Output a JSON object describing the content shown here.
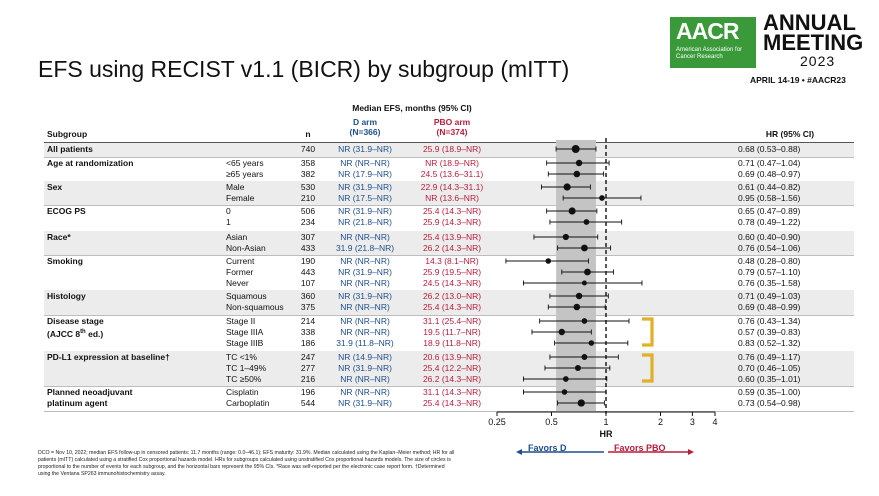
{
  "slide": {
    "title": "EFS using RECIST v1.1 (BICR) by subgroup (mITT)"
  },
  "logo": {
    "mark": "AACR",
    "org": "American Association for Cancer Research",
    "event": "ANNUAL MEETING",
    "year": "2023",
    "dates": "APRIL 14-19 • #AACR23"
  },
  "headers": {
    "median": "Median EFS, months (95% CI)",
    "subgroup": "Subgroup",
    "n": "n",
    "d_arm": "D arm",
    "d_n": "(N=366)",
    "pbo_arm": "PBO arm",
    "pbo_n": "(N=374)",
    "hr_ci": "HR (95% CI)"
  },
  "chart_data": {
    "type": "forest",
    "xlabel": "HR",
    "x_scale": "log",
    "xlim": [
      0.25,
      4
    ],
    "x_ticks": [
      "0.25",
      "0.5",
      "1",
      "2",
      "3",
      "4"
    ],
    "x_tick_values": [
      0.25,
      0.5,
      1,
      2,
      3,
      4
    ],
    "reference_line": 1,
    "shaded_ci": [
      0.53,
      0.88
    ],
    "favors_left": "Favors D",
    "favors_right": "Favors PBO",
    "rows": [
      {
        "group": "All patients",
        "level": "",
        "n": "740",
        "d": "NR (31.9–NR)",
        "pbo": "25.9 (18.9–NR)",
        "hr_text": "0.68 (0.53–0.88)",
        "hr": 0.68,
        "lo": 0.53,
        "hi": 0.88
      },
      {
        "group": "Age at randomization",
        "level": "<65 years",
        "n": "358",
        "d": "NR (NR–NR)",
        "pbo": "NR (18.9–NR)",
        "hr_text": "0.71 (0.47–1.04)",
        "hr": 0.71,
        "lo": 0.47,
        "hi": 1.04
      },
      {
        "group": "",
        "level": "≥65 years",
        "n": "382",
        "d": "NR (17.9–NR)",
        "pbo": "24.5 (13.6–31.1)",
        "hr_text": "0.69 (0.48–0.97)",
        "hr": 0.69,
        "lo": 0.48,
        "hi": 0.97
      },
      {
        "group": "Sex",
        "level": "Male",
        "n": "530",
        "d": "NR (31.9–NR)",
        "pbo": "22.9 (14.3–31.1)",
        "hr_text": "0.61 (0.44–0.82)",
        "hr": 0.61,
        "lo": 0.44,
        "hi": 0.82
      },
      {
        "group": "",
        "level": "Female",
        "n": "210",
        "d": "NR (17.5–NR)",
        "pbo": "NR (13.6–NR)",
        "hr_text": "0.95 (0.58–1.56)",
        "hr": 0.95,
        "lo": 0.58,
        "hi": 1.56
      },
      {
        "group": "ECOG PS",
        "level": "0",
        "n": "506",
        "d": "NR (31.9–NR)",
        "pbo": "25.4 (14.3–NR)",
        "hr_text": "0.65 (0.47–0.89)",
        "hr": 0.65,
        "lo": 0.47,
        "hi": 0.89
      },
      {
        "group": "",
        "level": "1",
        "n": "234",
        "d": "NR (21.8–NR)",
        "pbo": "25.9 (14.3–NR)",
        "hr_text": "0.78 (0.49–1.22)",
        "hr": 0.78,
        "lo": 0.49,
        "hi": 1.22
      },
      {
        "group": "Race*",
        "level": "Asian",
        "n": "307",
        "d": "NR (NR–NR)",
        "pbo": "25.4 (13.9–NR)",
        "hr_text": "0.60 (0.40–0.90)",
        "hr": 0.6,
        "lo": 0.4,
        "hi": 0.9
      },
      {
        "group": "",
        "level": "Non-Asian",
        "n": "433",
        "d": "31.9 (21.8–NR)",
        "pbo": "26.2 (14.3–NR)",
        "hr_text": "0.76 (0.54–1.06)",
        "hr": 0.76,
        "lo": 0.54,
        "hi": 1.06
      },
      {
        "group": "Smoking",
        "level": "Current",
        "n": "190",
        "d": "NR (NR–NR)",
        "pbo": "14.3 (8.1–NR)",
        "hr_text": "0.48 (0.28–0.80)",
        "hr": 0.48,
        "lo": 0.28,
        "hi": 0.8
      },
      {
        "group": "",
        "level": "Former",
        "n": "443",
        "d": "NR (31.9–NR)",
        "pbo": "25.9 (19.5–NR)",
        "hr_text": "0.79 (0.57–1.10)",
        "hr": 0.79,
        "lo": 0.57,
        "hi": 1.1
      },
      {
        "group": "",
        "level": "Never",
        "n": "107",
        "d": "NR (NR–NR)",
        "pbo": "24.5 (14.3–NR)",
        "hr_text": "0.76 (0.35–1.58)",
        "hr": 0.76,
        "lo": 0.35,
        "hi": 1.58
      },
      {
        "group": "Histology",
        "level": "Squamous",
        "n": "360",
        "d": "NR (31.9–NR)",
        "pbo": "26.2 (13.0–NR)",
        "hr_text": "0.71 (0.49–1.03)",
        "hr": 0.71,
        "lo": 0.49,
        "hi": 1.03
      },
      {
        "group": "",
        "level": "Non-squamous",
        "n": "375",
        "d": "NR (NR–NR)",
        "pbo": "25.4 (14.3–NR)",
        "hr_text": "0.69 (0.48–0.99)",
        "hr": 0.69,
        "lo": 0.48,
        "hi": 0.99
      },
      {
        "group": "Disease stage",
        "group2": "(AJCC 8th ed.)",
        "level": "Stage II",
        "n": "214",
        "d": "NR (NR–NR)",
        "pbo": "31.1 (25.4–NR)",
        "hr_text": "0.76 (0.43–1.34)",
        "hr": 0.76,
        "lo": 0.43,
        "hi": 1.34
      },
      {
        "group": "",
        "level": "Stage IIIA",
        "n": "338",
        "d": "NR (NR–NR)",
        "pbo": "19.5 (11.7–NR)",
        "hr_text": "0.57 (0.39–0.83)",
        "hr": 0.57,
        "lo": 0.39,
        "hi": 0.83
      },
      {
        "group": "",
        "level": "Stage IIIB",
        "n": "186",
        "d": "31.9 (11.8–NR)",
        "pbo": "18.9 (11.8–NR)",
        "hr_text": "0.83 (0.52–1.32)",
        "hr": 0.83,
        "lo": 0.52,
        "hi": 1.32
      },
      {
        "group": "PD-L1 expression at baseline†",
        "level": "TC <1%",
        "n": "247",
        "d": "NR (14.9–NR)",
        "pbo": "20.6 (13.9–NR)",
        "hr_text": "0.76 (0.49–1.17)",
        "hr": 0.76,
        "lo": 0.49,
        "hi": 1.17
      },
      {
        "group": "",
        "level": "TC 1–49%",
        "n": "277",
        "d": "NR (31.9–NR)",
        "pbo": "25.4 (12.2–NR)",
        "hr_text": "0.70 (0.46–1.05)",
        "hr": 0.7,
        "lo": 0.46,
        "hi": 1.05
      },
      {
        "group": "",
        "level": "TC ≥50%",
        "n": "216",
        "d": "NR (NR–NR)",
        "pbo": "26.2 (14.3–NR)",
        "hr_text": "0.60 (0.35–1.01)",
        "hr": 0.6,
        "lo": 0.35,
        "hi": 1.01
      },
      {
        "group": "Planned neoadjuvant",
        "group2": "platinum agent",
        "level": "Cisplatin",
        "n": "196",
        "d": "NR (NR–NR)",
        "pbo": "31.1 (14.3–NR)",
        "hr_text": "0.59 (0.35–1.00)",
        "hr": 0.59,
        "lo": 0.35,
        "hi": 1.0
      },
      {
        "group": "",
        "level": "Carboplatin",
        "n": "544",
        "d": "NR (31.9–NR)",
        "pbo": "25.4 (14.3–NR)",
        "hr_text": "0.73 (0.54–0.98)",
        "hr": 0.73,
        "lo": 0.54,
        "hi": 0.98
      }
    ]
  },
  "footnote": "DCO = Nov 10, 2022; median EFS follow-up in censored patients: 11.7 months (range: 0.0–46.1); EFS maturity: 31.9%. Median calculated using the Kaplan–Meier method; HR for all patients (mITT) calculated using a stratified Cox proportional hazards model. HRs for subgroups calculated using unstratified Cox proportional hazards models. The size of circles is proportional to the number of events for each subgroup, and the horizontal bars represent the 95% CIs. *Race was self-reported per the electronic case report form. †Determined using the Ventana SP263 immunohistochemistry assay.",
  "colors": {
    "d_arm": "#1f4e8c",
    "pbo_arm": "#b81d3a",
    "bracket": "#e0b02a",
    "shade": "#c4c4c4",
    "band": "#ececec",
    "logo_green": "#3a9a3a"
  }
}
